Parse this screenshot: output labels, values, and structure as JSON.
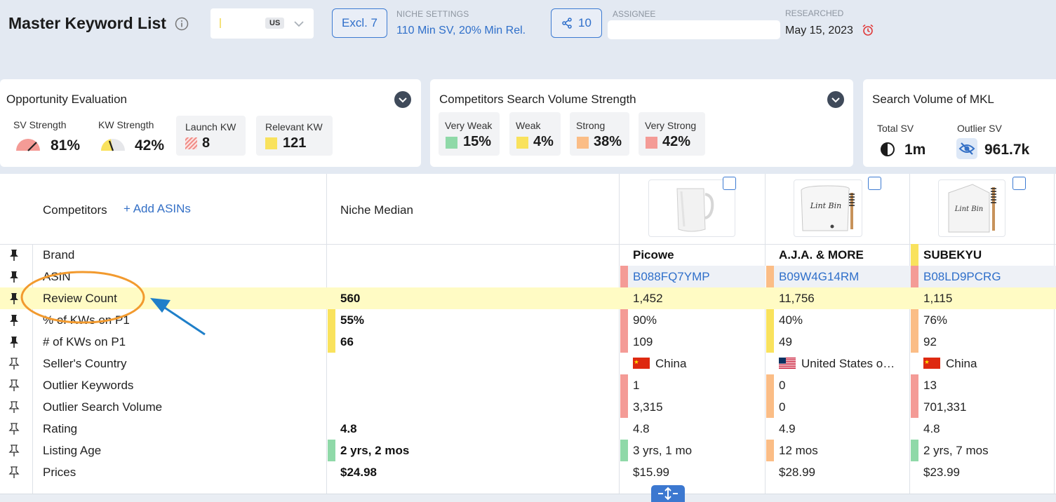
{
  "header": {
    "title": "Master Keyword List",
    "market_code": "US",
    "excl_label": "Excl. 7",
    "niche_settings_caption": "NICHE SETTINGS",
    "niche_settings_value": "110 Min SV, 20% Min Rel.",
    "share_count": "10",
    "assignee_caption": "ASSIGNEE",
    "assignee_value": "",
    "researched_caption": "RESEARCHED",
    "researched_value": "May 15, 2023"
  },
  "opportunity": {
    "title": "Opportunity Evaluation",
    "sv_strength_label": "SV Strength",
    "sv_strength_value": "81%",
    "kw_strength_label": "KW Strength",
    "kw_strength_value": "42%",
    "launch_kw_label": "Launch KW",
    "launch_kw_value": "8",
    "relevant_kw_label": "Relevant KW",
    "relevant_kw_value": "121"
  },
  "competitor_strength": {
    "title": "Competitors Search Volume Strength",
    "levels": [
      {
        "label": "Very Weak",
        "value": "15%",
        "color": "#8fd9a8"
      },
      {
        "label": "Weak",
        "value": "4%",
        "color": "#f9e25d"
      },
      {
        "label": "Strong",
        "value": "38%",
        "color": "#fbbd86"
      },
      {
        "label": "Very Strong",
        "value": "42%",
        "color": "#f49b96"
      }
    ]
  },
  "search_volume": {
    "title": "Search Volume of MKL",
    "total_label": "Total SV",
    "total_value": "1m",
    "outlier_label": "Outlier SV",
    "outlier_value": "961.7k"
  },
  "table": {
    "competitors_label": "Competitors",
    "add_asins_label": "+ Add ASINs",
    "median_header": "Niche Median",
    "rows": [
      {
        "label": "Brand",
        "median": "",
        "values": [
          "Picowe",
          "A.J.A. & MORE",
          "SUBEKYU"
        ]
      },
      {
        "label": "ASIN",
        "median": "",
        "values": [
          "B088FQ7YMP",
          "B09W4G14RM",
          "B08LD9PCRG"
        ]
      },
      {
        "label": "Review Count",
        "median": "560",
        "values": [
          "1,452",
          "11,756",
          "1,115"
        ]
      },
      {
        "label": "% of KWs on P1",
        "median": "55%",
        "values": [
          "90%",
          "40%",
          "76%"
        ]
      },
      {
        "label": "# of KWs on P1",
        "median": "66",
        "values": [
          "109",
          "49",
          "92"
        ]
      },
      {
        "label": "Seller's Country",
        "median": "",
        "values": [
          "China",
          "United States o…",
          "China"
        ]
      },
      {
        "label": "Outlier Keywords",
        "median": "",
        "values": [
          "1",
          "0",
          "13"
        ]
      },
      {
        "label": "Outlier Search Volume",
        "median": "",
        "values": [
          "3,315",
          "0",
          "701,331"
        ]
      },
      {
        "label": "Rating",
        "median": "4.8",
        "values": [
          "4.8",
          "4.9",
          "4.8"
        ]
      },
      {
        "label": "Listing Age",
        "median": "2 yrs, 2 mos",
        "values": [
          "3 yrs, 1 mo",
          "12 mos",
          "2 yrs, 7 mos"
        ]
      },
      {
        "label": "Prices",
        "median": "$24.98",
        "values": [
          "$15.99",
          "$28.99",
          "$23.99"
        ]
      }
    ],
    "product_images": [
      "white-caddy-product",
      "lint-bin-with-brush-product",
      "lint-bin-box-with-brush-product"
    ],
    "product_image_texts": [
      "Lint Bin",
      "Lint Bin"
    ]
  }
}
